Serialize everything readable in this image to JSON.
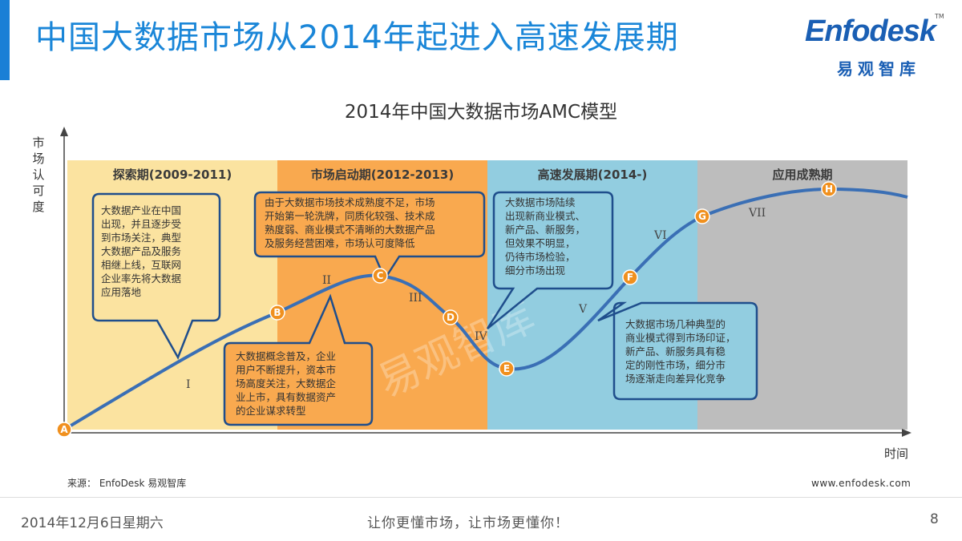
{
  "header": {
    "title": "中国大数据市场从2014年起进入高速发展期",
    "logo_word": "Enfodesk",
    "logo_tm": "TM",
    "logo_cn": "易观智库"
  },
  "diagram": {
    "title": "2014年中国大数据市场AMC模型",
    "y_axis_label": "市场认可度",
    "x_axis_label": "时间",
    "watermark": "易观智库",
    "stages": [
      {
        "label": "探索期(2009-2011)",
        "color": "#fbe3a0"
      },
      {
        "label": "市场启动期(2012-2013)",
        "color": "#f9a94f"
      },
      {
        "label": "高速发展期(2014-)",
        "color": "#92cde0"
      },
      {
        "label": "应用成熟期",
        "color": "#bdbdbd"
      }
    ],
    "points": [
      "A",
      "B",
      "C",
      "D",
      "E",
      "F",
      "G",
      "H"
    ],
    "point_color": "#f0901e",
    "curve_color": "#3a6fb5",
    "phases": [
      "I",
      "II",
      "III",
      "IV",
      "V",
      "VI",
      "VII"
    ],
    "bubbles": [
      {
        "lines": [
          "大数据产业在中国",
          "出现，并且逐步受",
          "到市场关注，典型",
          "大数据产品及服务",
          "相继上线，互联网",
          "企业率先将大数据",
          "应用落地"
        ]
      },
      {
        "lines": [
          "由于大数据市场技术成熟度不足，市场",
          "开始第一轮洗牌，同质化较强、技术成",
          "熟度弱、商业模式不清晰的大数据产品",
          "及服务经营困难，市场认可度降低"
        ]
      },
      {
        "lines": [
          "大数据市场陆续",
          "出现新商业模式、",
          "新产品、新服务，",
          "但效果不明显，",
          "仍待市场检验，",
          "细分市场出现"
        ]
      },
      {
        "lines": [
          "大数据概念普及，企业",
          "用户不断提升，资本市",
          "场高度关注，大数据企",
          "业上市，具有数据资产",
          "的企业谋求转型"
        ]
      },
      {
        "lines": [
          "大数据市场几种典型的",
          "商业模式得到市场印证，",
          "新产品、新服务具有稳",
          "定的刚性市场，细分市",
          "场逐渐走向差异化竞争"
        ]
      }
    ]
  },
  "footer": {
    "source": "来源： EnfoDesk 易观智库",
    "website": "www.enfodesk.com",
    "date": "2014年12月6日星期六",
    "slogan": "让你更懂市场，让市场更懂你！",
    "page": "8"
  }
}
